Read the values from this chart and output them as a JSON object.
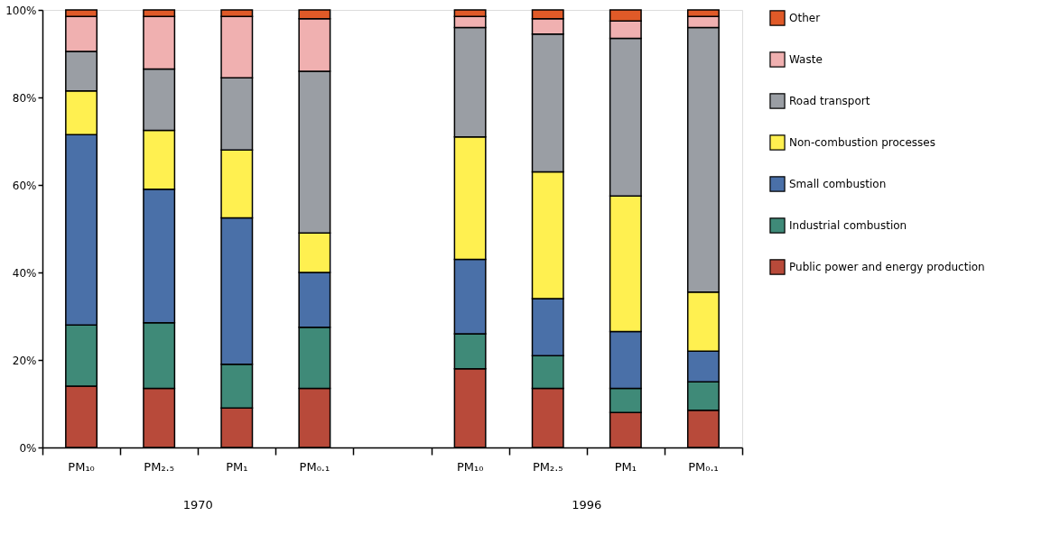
{
  "chart_data": {
    "type": "bar",
    "stacked": true,
    "categories": [
      "PM₁₀",
      "PM₂.₅",
      "PM₁",
      "PM₀.₁",
      null,
      "PM₁₀",
      "PM₂.₅",
      "PM₁",
      "PM₀.₁"
    ],
    "series": [
      {
        "name": "Public power and energy production",
        "color": "#b84a3a",
        "values": [
          14,
          13.5,
          9,
          13.5,
          null,
          18,
          13.5,
          8,
          8.5
        ]
      },
      {
        "name": "Industrial combustion",
        "color": "#3f8a78",
        "values": [
          14,
          15,
          10,
          14,
          null,
          8,
          7.5,
          5.5,
          6.5
        ]
      },
      {
        "name": "Small combustion",
        "color": "#4a70a8",
        "values": [
          43.5,
          30.5,
          33.5,
          12.5,
          null,
          17,
          13,
          13,
          7
        ]
      },
      {
        "name": "Non-combustion processes",
        "color": "#fff050",
        "values": [
          10,
          13.5,
          15.5,
          9,
          null,
          28,
          29,
          31,
          13.5
        ]
      },
      {
        "name": "Road transport",
        "color": "#9a9ea4",
        "values": [
          9,
          14,
          16.5,
          37,
          null,
          25,
          31.5,
          36,
          60.5
        ]
      },
      {
        "name": "Waste",
        "color": "#f0b0b0",
        "values": [
          8,
          12,
          14,
          12,
          null,
          2.5,
          3.5,
          4,
          2.5
        ]
      },
      {
        "name": "Other",
        "color": "#e05a28",
        "values": [
          1.5,
          1.5,
          1.5,
          2,
          null,
          1.5,
          2,
          2.5,
          1.5
        ]
      }
    ],
    "ylim": [
      0,
      100
    ],
    "yticks": [
      {
        "value": 0,
        "label": "0%"
      },
      {
        "value": 20,
        "label": "20%"
      },
      {
        "value": 40,
        "label": "40%"
      },
      {
        "value": 60,
        "label": "60%"
      },
      {
        "value": 80,
        "label": "80%"
      },
      {
        "value": 100,
        "label": "100%"
      }
    ],
    "annotations": [
      "1970",
      "1996"
    ],
    "grid": false,
    "legend": "right"
  }
}
